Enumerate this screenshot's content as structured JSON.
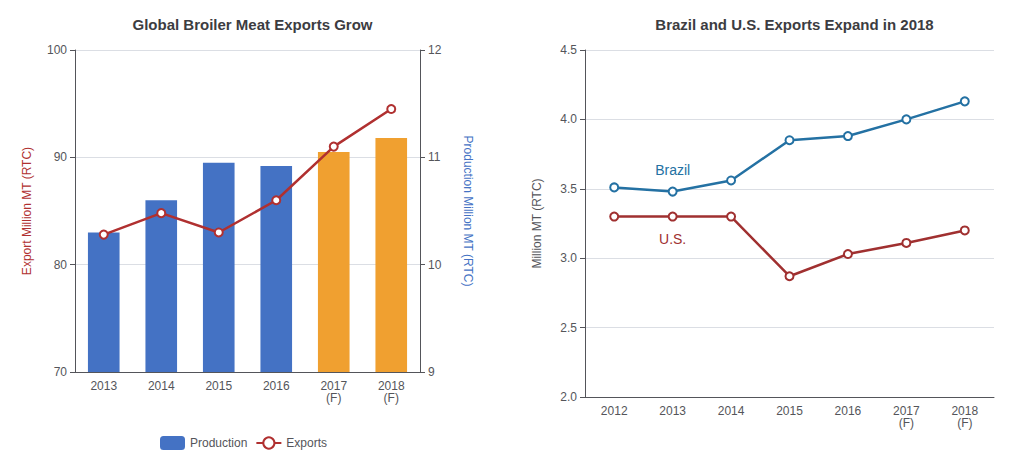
{
  "chart_data": [
    {
      "type": "bar",
      "title": "Global Broiler Meat Exports Grow",
      "categories": [
        "2013",
        "2014",
        "2015",
        "2016",
        "2017\n(F)",
        "2018\n(F)"
      ],
      "series": [
        {
          "name": "Production",
          "type": "bar",
          "axis": "y2",
          "color": "#4472c4",
          "colors": [
            "#4472c4",
            "#4472c4",
            "#4472c4",
            "#4472c4",
            "#f0a030",
            "#f0a030"
          ],
          "values": [
            10.3,
            10.6,
            10.95,
            10.92,
            11.05,
            11.18
          ]
        },
        {
          "name": "Exports",
          "type": "line",
          "color": "#b03030",
          "marker": "circle",
          "values": [
            82.8,
            84.8,
            83.0,
            86.0,
            91.0,
            94.5
          ]
        }
      ],
      "ylabel": "Export Million MT (RTC)",
      "y2label": "Production Million MT (RTC)",
      "ylim": [
        70,
        100
      ],
      "yticks": [
        70,
        80,
        90,
        100
      ],
      "y2lim": [
        9,
        12
      ],
      "y2ticks": [
        9,
        10,
        11,
        12
      ],
      "grid": true,
      "legend": "bottom"
    },
    {
      "type": "line",
      "title": "Brazil and U.S. Exports Expand in 2018",
      "categories": [
        "2012",
        "2013",
        "2014",
        "2015",
        "2016",
        "2017\n(F)",
        "2018\n(F)"
      ],
      "series": [
        {
          "name": "Brazil",
          "color": "#2471a3",
          "marker": "circle",
          "values": [
            3.51,
            3.48,
            3.56,
            3.85,
            3.88,
            4.0,
            4.13
          ]
        },
        {
          "name": "U.S.",
          "color": "#a03030",
          "marker": "circle",
          "values": [
            3.3,
            3.3,
            3.3,
            2.87,
            3.03,
            3.11,
            3.2
          ]
        }
      ],
      "ylabel": "Million MT (RTC)",
      "ylim": [
        2.0,
        4.5
      ],
      "yticks": [
        {
          "value": 2,
          "label": "2.0"
        },
        2.5,
        {
          "value": 3,
          "label": "3.0"
        },
        3.5,
        {
          "value": 4,
          "label": "4.0"
        },
        4.5
      ],
      "grid": true,
      "annotations": [
        "Brazil",
        "U.S."
      ]
    }
  ]
}
